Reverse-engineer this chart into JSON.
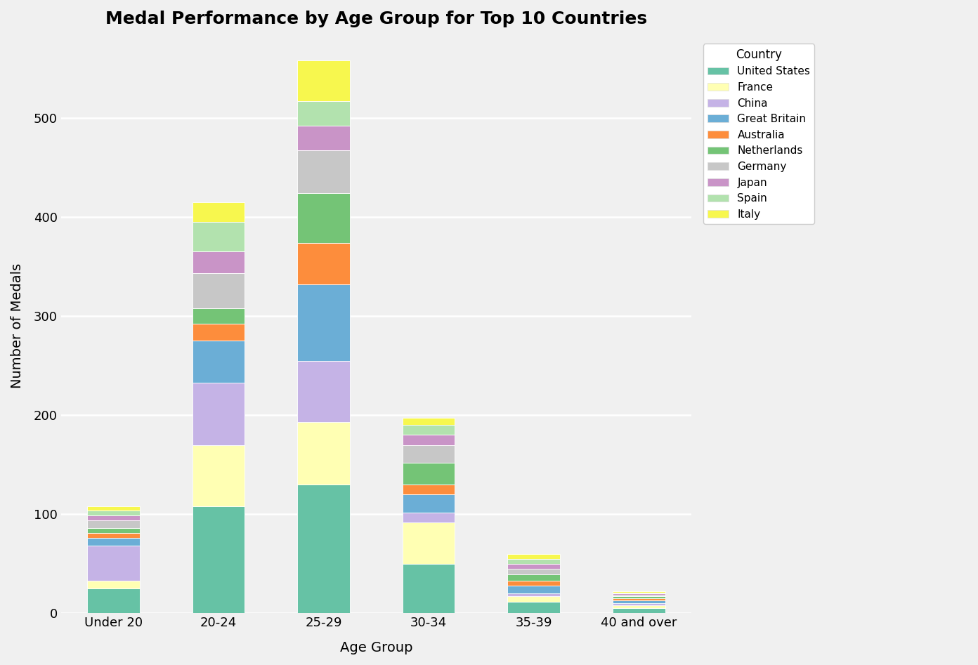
{
  "title": "Medal Performance by Age Group for Top 10 Countries",
  "xlabel": "Age Group",
  "ylabel": "Number of Medals",
  "age_groups": [
    "Under 20",
    "20-24",
    "25-29",
    "30-34",
    "35-39",
    "40 and over"
  ],
  "countries": [
    "United States",
    "France",
    "China",
    "Great Britain",
    "Australia",
    "Netherlands",
    "Germany",
    "Japan",
    "Spain",
    "Italy"
  ],
  "colors": {
    "United States": "#66c2a5",
    "France": "#ffffb3",
    "China": "#c5b3e6",
    "Great Britain": "#6baed6",
    "Australia": "#fd8d3c",
    "Netherlands": "#74c476",
    "Germany": "#c7c7c7",
    "Japan": "#c994c7",
    "Spain": "#b2e2ae",
    "Italy": "#f7f74e"
  },
  "data": {
    "United States": [
      25,
      108,
      130,
      50,
      12,
      5
    ],
    "France": [
      8,
      62,
      63,
      42,
      5,
      3
    ],
    "China": [
      35,
      63,
      62,
      10,
      3,
      2
    ],
    "Great Britain": [
      8,
      42,
      77,
      18,
      8,
      3
    ],
    "Australia": [
      5,
      17,
      42,
      10,
      5,
      2
    ],
    "Netherlands": [
      5,
      16,
      50,
      22,
      6,
      2
    ],
    "Germany": [
      8,
      35,
      43,
      18,
      6,
      2
    ],
    "Japan": [
      5,
      22,
      25,
      10,
      5,
      1
    ],
    "Spain": [
      5,
      30,
      25,
      10,
      5,
      1
    ],
    "Italy": [
      4,
      20,
      41,
      7,
      5,
      1
    ]
  },
  "background_color": "#f0f0f0",
  "grid_color": "#ffffff",
  "ylim": [
    0,
    580
  ],
  "yticks": [
    0,
    100,
    200,
    300,
    400,
    500
  ]
}
